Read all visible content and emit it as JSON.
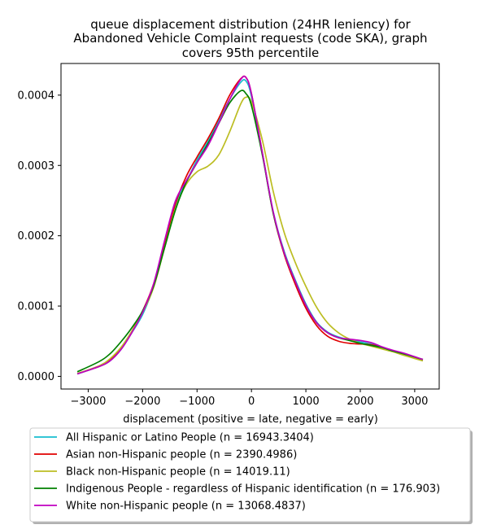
{
  "chart_data": {
    "type": "line",
    "title_lines": [
      "queue displacement distribution (24HR leniency) for",
      "Abandoned Vehicle Complaint  requests (code SKA), graph",
      "covers 95th percentile"
    ],
    "xlabel": "displacement (positive = late, negative = early)",
    "ylabel": "",
    "xlim": [
      -3500,
      3450
    ],
    "ylim": [
      -1.8e-05,
      0.000445
    ],
    "xticks": [
      -3000,
      -2000,
      -1000,
      0,
      1000,
      2000,
      3000
    ],
    "xtick_labels": [
      "−3000",
      "−2000",
      "−1000",
      "0",
      "1000",
      "2000",
      "3000"
    ],
    "yticks": [
      0,
      0.0001,
      0.0002,
      0.0003,
      0.0004
    ],
    "ytick_labels": [
      "0.0000",
      "0.0001",
      "0.0002",
      "0.0003",
      "0.0004"
    ],
    "legend_position": "below",
    "series": [
      {
        "name": "All Hispanic or Latino People (n = 16943.3404)",
        "color": "#17becf",
        "x": [
          -3200,
          -2800,
          -2600,
          -2400,
          -2200,
          -2000,
          -1800,
          -1600,
          -1400,
          -1200,
          -1000,
          -800,
          -600,
          -400,
          -200,
          -100,
          0,
          200,
          400,
          600,
          800,
          1000,
          1200,
          1400,
          1600,
          1800,
          2000,
          2200,
          2400,
          2600,
          2800,
          3150
        ],
        "y": [
          3.5e-06,
          1.4e-05,
          2.2e-05,
          3.8e-05,
          6.2e-05,
          8.8e-05,
          0.000128,
          0.000187,
          0.000243,
          0.000276,
          0.000308,
          0.000334,
          0.000364,
          0.000394,
          0.000418,
          0.00042,
          0.000398,
          0.000318,
          0.000234,
          0.000178,
          0.000138,
          0.000103,
          7.7e-05,
          6.3e-05,
          5.6e-05,
          5.2e-05,
          4.9e-05,
          4.6e-05,
          4.1e-05,
          3.6e-05,
          3.2e-05,
          2.4e-05
        ]
      },
      {
        "name": "Asian non-Hispanic people (n = 2390.4986)",
        "color": "#e00000",
        "x": [
          -3200,
          -2800,
          -2600,
          -2400,
          -2200,
          -2000,
          -1800,
          -1600,
          -1400,
          -1200,
          -1000,
          -800,
          -600,
          -400,
          -200,
          -100,
          0,
          200,
          400,
          600,
          800,
          1000,
          1200,
          1400,
          1600,
          1800,
          2000,
          2200,
          2400,
          2600,
          2800,
          3150
        ],
        "y": [
          4e-06,
          1.4e-05,
          2.3e-05,
          4e-05,
          6.4e-05,
          9.3e-05,
          0.000131,
          0.000189,
          0.000245,
          0.000284,
          0.000312,
          0.000338,
          0.000367,
          0.0004,
          0.000423,
          0.000425,
          0.000402,
          0.000318,
          0.000232,
          0.000174,
          0.000132,
          9.7e-05,
          7.2e-05,
          5.7e-05,
          5e-05,
          4.7e-05,
          4.6e-05,
          4.5e-05,
          4.1e-05,
          3.6e-05,
          3.2e-05,
          2.4e-05
        ]
      },
      {
        "name": "Black non-Hispanic people (n = 14019.11)",
        "color": "#bcbd22",
        "x": [
          -3200,
          -2800,
          -2600,
          -2400,
          -2200,
          -2000,
          -1800,
          -1600,
          -1400,
          -1200,
          -1000,
          -800,
          -600,
          -400,
          -200,
          -100,
          0,
          200,
          400,
          600,
          800,
          1000,
          1200,
          1400,
          1600,
          1800,
          2000,
          2200,
          2400,
          2600,
          2800,
          3150
        ],
        "y": [
          4e-06,
          1.5e-05,
          2.5e-05,
          4.1e-05,
          6.4e-05,
          9.1e-05,
          0.000126,
          0.000182,
          0.000238,
          0.000273,
          0.000291,
          0.000299,
          0.000315,
          0.000348,
          0.000387,
          0.000397,
          0.00039,
          0.000336,
          0.000263,
          0.000205,
          0.000163,
          0.000128,
          9.8e-05,
          7.6e-05,
          6.2e-05,
          5.3e-05,
          4.7e-05,
          4.3e-05,
          3.9e-05,
          3.5e-05,
          3e-05,
          2.2e-05
        ]
      },
      {
        "name": "Indigenous People - regardless of Hispanic identification (n = 176.903)",
        "color": "#008000",
        "x": [
          -3200,
          -2800,
          -2600,
          -2400,
          -2200,
          -2000,
          -1800,
          -1600,
          -1400,
          -1200,
          -1000,
          -800,
          -600,
          -400,
          -200,
          -100,
          0,
          200,
          400,
          600,
          800,
          1000,
          1200,
          1400,
          1600,
          1800,
          2000,
          2200,
          2400,
          2600,
          2800,
          3150
        ],
        "y": [
          6.5e-06,
          2.1e-05,
          3.2e-05,
          4.9e-05,
          6.9e-05,
          9.3e-05,
          0.000128,
          0.000182,
          0.000236,
          0.000276,
          0.000304,
          0.000331,
          0.00036,
          0.000389,
          0.000406,
          0.000402,
          0.000385,
          0.000315,
          0.000232,
          0.000176,
          0.000136,
          0.000101,
          7.6e-05,
          6.2e-05,
          5.5e-05,
          5.1e-05,
          4.7e-05,
          4.4e-05,
          4.1e-05,
          3.6e-05,
          3.2e-05,
          2.4e-05
        ]
      },
      {
        "name": "White non-Hispanic people (n = 13068.4837)",
        "color": "#c000c0",
        "x": [
          -3200,
          -2800,
          -2600,
          -2400,
          -2200,
          -2000,
          -1800,
          -1600,
          -1400,
          -1200,
          -1000,
          -800,
          -600,
          -400,
          -200,
          -100,
          0,
          200,
          400,
          600,
          800,
          1000,
          1200,
          1400,
          1600,
          1800,
          2000,
          2200,
          2400,
          2600,
          2800,
          3150
        ],
        "y": [
          3.5e-06,
          1.4e-05,
          2.2e-05,
          3.8e-05,
          6.2e-05,
          9.1e-05,
          0.000131,
          0.000192,
          0.000249,
          0.000278,
          0.000304,
          0.000328,
          0.00036,
          0.000394,
          0.000422,
          0.000425,
          0.000402,
          0.000318,
          0.000234,
          0.000176,
          0.000136,
          0.000101,
          7.6e-05,
          6.2e-05,
          5.5e-05,
          5.3e-05,
          5.1e-05,
          4.8e-05,
          4.2e-05,
          3.7e-05,
          3.3e-05,
          2.4e-05
        ]
      }
    ]
  }
}
